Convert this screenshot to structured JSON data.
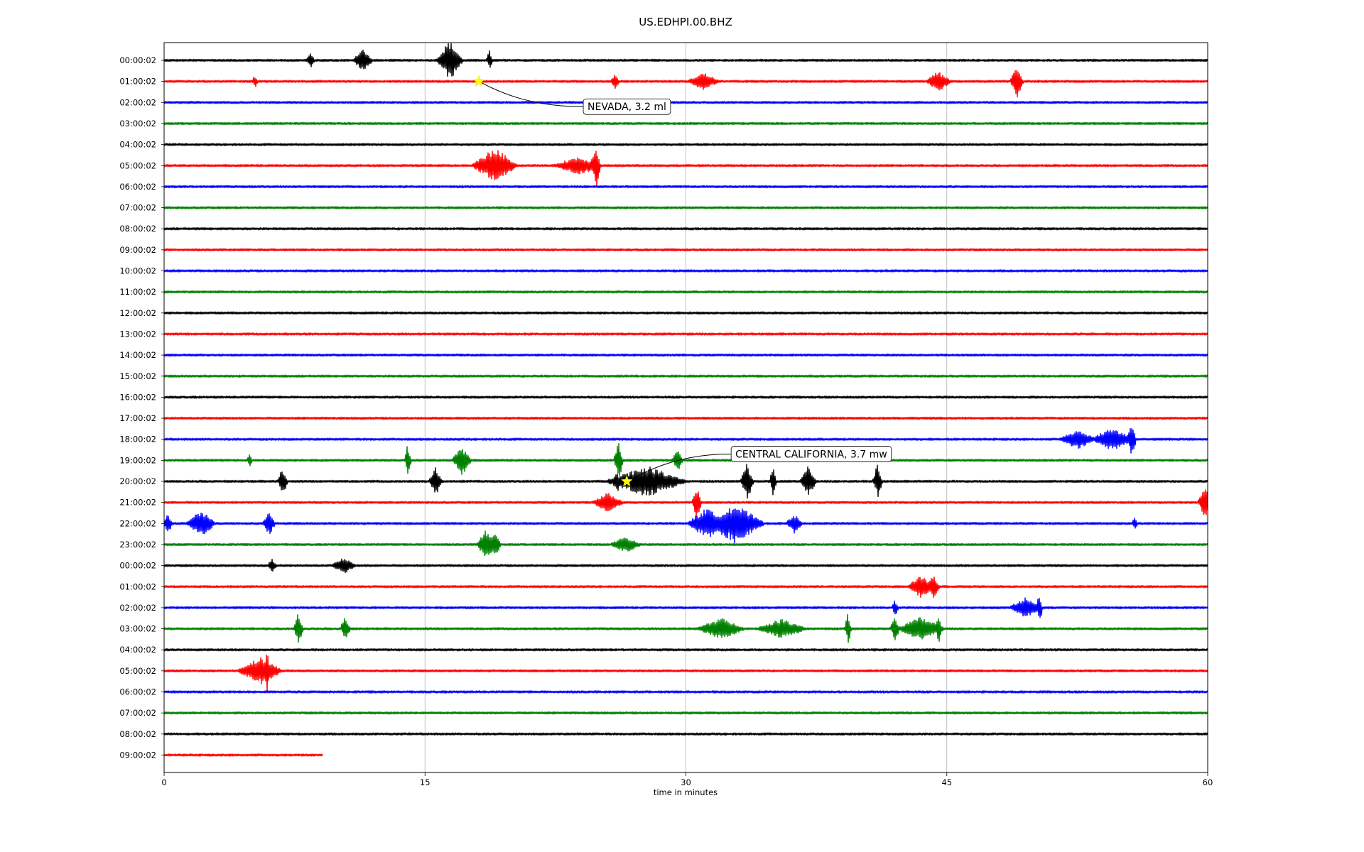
{
  "chart_data": {
    "type": "line",
    "title": "US.EDHPI.00.BHZ",
    "xlabel": "time in minutes",
    "ylabel": "",
    "xlim": [
      0,
      60
    ],
    "xticks": [
      0,
      15,
      30,
      45,
      60
    ],
    "grid": "vertical",
    "series_colors": [
      "#000000",
      "#ff0000",
      "#0000ff",
      "#008000"
    ],
    "hour_labels": [
      "00:00:02",
      "01:00:02",
      "02:00:02",
      "03:00:02",
      "04:00:02",
      "05:00:02",
      "06:00:02",
      "07:00:02",
      "08:00:02",
      "09:00:02",
      "10:00:02",
      "11:00:02",
      "12:00:02",
      "13:00:02",
      "14:00:02",
      "15:00:02",
      "16:00:02",
      "17:00:02",
      "18:00:02",
      "19:00:02",
      "20:00:02",
      "21:00:02",
      "22:00:02",
      "23:00:02",
      "00:00:02",
      "01:00:02",
      "02:00:02",
      "03:00:02",
      "04:00:02",
      "05:00:02",
      "06:00:02",
      "07:00:02",
      "08:00:02",
      "09:00:02"
    ],
    "last_trace_end_minutes": 9.1,
    "bursts": [
      {
        "row": 0,
        "t": 8.4,
        "amp": 0.35,
        "dur": 0.3
      },
      {
        "row": 0,
        "t": 11.4,
        "amp": 0.6,
        "dur": 0.6
      },
      {
        "row": 0,
        "t": 16.4,
        "amp": 1.0,
        "dur": 0.8
      },
      {
        "row": 0,
        "t": 18.7,
        "amp": 0.5,
        "dur": 0.2
      },
      {
        "row": 1,
        "t": 5.2,
        "amp": 0.3,
        "dur": 0.2
      },
      {
        "row": 1,
        "t": 25.9,
        "amp": 0.35,
        "dur": 0.3
      },
      {
        "row": 1,
        "t": 31.0,
        "amp": 0.45,
        "dur": 1.0
      },
      {
        "row": 1,
        "t": 44.5,
        "amp": 0.5,
        "dur": 0.8
      },
      {
        "row": 1,
        "t": 49.0,
        "amp": 0.9,
        "dur": 0.4
      },
      {
        "row": 5,
        "t": 19.0,
        "amp": 0.9,
        "dur": 1.4
      },
      {
        "row": 5,
        "t": 23.8,
        "amp": 0.45,
        "dur": 1.6
      },
      {
        "row": 5,
        "t": 24.8,
        "amp": 1.2,
        "dur": 0.3
      },
      {
        "row": 18,
        "t": 52.5,
        "amp": 0.5,
        "dur": 1.2
      },
      {
        "row": 18,
        "t": 54.5,
        "amp": 0.6,
        "dur": 1.3
      },
      {
        "row": 18,
        "t": 55.6,
        "amp": 0.9,
        "dur": 0.3
      },
      {
        "row": 19,
        "t": 4.9,
        "amp": 0.3,
        "dur": 0.2
      },
      {
        "row": 19,
        "t": 14.0,
        "amp": 0.85,
        "dur": 0.2
      },
      {
        "row": 19,
        "t": 17.1,
        "amp": 0.75,
        "dur": 0.6
      },
      {
        "row": 19,
        "t": 26.1,
        "amp": 1.0,
        "dur": 0.3
      },
      {
        "row": 19,
        "t": 29.5,
        "amp": 0.6,
        "dur": 0.3
      },
      {
        "row": 20,
        "t": 6.8,
        "amp": 0.7,
        "dur": 0.3
      },
      {
        "row": 20,
        "t": 15.6,
        "amp": 0.7,
        "dur": 0.4
      },
      {
        "row": 20,
        "t": 26.0,
        "amp": 0.6,
        "dur": 0.3
      },
      {
        "row": 20,
        "t": 27.7,
        "amp": 0.8,
        "dur": 2.5
      },
      {
        "row": 20,
        "t": 33.5,
        "amp": 0.9,
        "dur": 0.4
      },
      {
        "row": 20,
        "t": 35.0,
        "amp": 0.9,
        "dur": 0.2
      },
      {
        "row": 20,
        "t": 37.0,
        "amp": 0.8,
        "dur": 0.5
      },
      {
        "row": 20,
        "t": 41.0,
        "amp": 0.85,
        "dur": 0.3
      },
      {
        "row": 21,
        "t": 25.5,
        "amp": 0.5,
        "dur": 1.0
      },
      {
        "row": 21,
        "t": 30.6,
        "amp": 0.9,
        "dur": 0.3
      },
      {
        "row": 21,
        "t": 59.8,
        "amp": 0.9,
        "dur": 0.4
      },
      {
        "row": 22,
        "t": 0.2,
        "amp": 0.5,
        "dur": 0.3
      },
      {
        "row": 22,
        "t": 2.1,
        "amp": 0.7,
        "dur": 0.9
      },
      {
        "row": 22,
        "t": 6.0,
        "amp": 0.6,
        "dur": 0.4
      },
      {
        "row": 22,
        "t": 31.2,
        "amp": 0.8,
        "dur": 1.2
      },
      {
        "row": 22,
        "t": 32.8,
        "amp": 1.0,
        "dur": 1.8
      },
      {
        "row": 22,
        "t": 36.2,
        "amp": 0.5,
        "dur": 0.5
      },
      {
        "row": 22,
        "t": 55.8,
        "amp": 0.3,
        "dur": 0.2
      },
      {
        "row": 23,
        "t": 18.5,
        "amp": 0.75,
        "dur": 0.6
      },
      {
        "row": 23,
        "t": 19.0,
        "amp": 0.6,
        "dur": 0.4
      },
      {
        "row": 23,
        "t": 26.5,
        "amp": 0.4,
        "dur": 1.0
      },
      {
        "row": 24,
        "t": 6.2,
        "amp": 0.35,
        "dur": 0.3
      },
      {
        "row": 24,
        "t": 10.3,
        "amp": 0.4,
        "dur": 0.8
      },
      {
        "row": 25,
        "t": 43.5,
        "amp": 0.6,
        "dur": 0.8
      },
      {
        "row": 25,
        "t": 44.2,
        "amp": 0.6,
        "dur": 0.4
      },
      {
        "row": 26,
        "t": 42.0,
        "amp": 0.45,
        "dur": 0.2
      },
      {
        "row": 26,
        "t": 49.5,
        "amp": 0.5,
        "dur": 1.0
      },
      {
        "row": 26,
        "t": 50.3,
        "amp": 0.8,
        "dur": 0.2
      },
      {
        "row": 27,
        "t": 7.7,
        "amp": 0.8,
        "dur": 0.3
      },
      {
        "row": 27,
        "t": 10.4,
        "amp": 0.7,
        "dur": 0.3
      },
      {
        "row": 27,
        "t": 32.0,
        "amp": 0.55,
        "dur": 1.5
      },
      {
        "row": 27,
        "t": 35.5,
        "amp": 0.5,
        "dur": 1.6
      },
      {
        "row": 27,
        "t": 39.3,
        "amp": 0.8,
        "dur": 0.2
      },
      {
        "row": 27,
        "t": 42.0,
        "amp": 0.6,
        "dur": 0.3
      },
      {
        "row": 27,
        "t": 43.5,
        "amp": 0.6,
        "dur": 1.5
      },
      {
        "row": 27,
        "t": 44.5,
        "amp": 0.75,
        "dur": 0.2
      },
      {
        "row": 29,
        "t": 5.5,
        "amp": 0.7,
        "dur": 1.4
      },
      {
        "row": 29,
        "t": 5.9,
        "amp": 1.2,
        "dur": 0.2
      }
    ],
    "annotations": [
      {
        "text": "NEVADA, 3.2 ml",
        "row": 1,
        "t": 18.1,
        "label_t": 24.1,
        "label_row": 2.2
      },
      {
        "text": "CENTRAL CALIFORNIA, 3.7 mw",
        "row": 20,
        "t": 26.6,
        "label_t": 32.6,
        "label_row": 18.7
      }
    ]
  }
}
